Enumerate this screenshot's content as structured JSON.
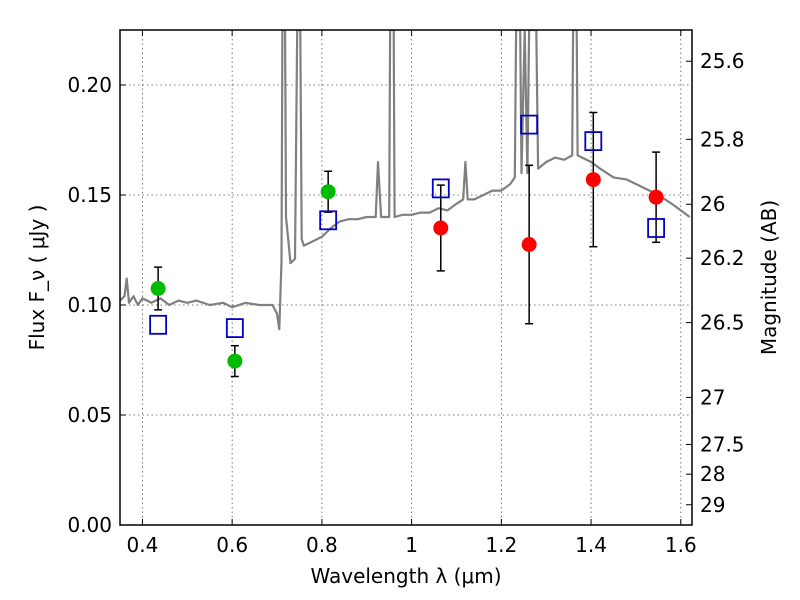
{
  "chart_data": {
    "type": "scatter",
    "xlabel": "Wavelength  λ (μm)",
    "ylabel": "Flux  F_ν  ( μJy )",
    "ylabel_right": "Magnitude (AB)",
    "xlim": [
      0.35,
      1.625
    ],
    "ylim": [
      0.0,
      0.225
    ],
    "xticks": [
      0.4,
      0.6,
      0.8,
      1.0,
      1.2,
      1.4,
      1.6
    ],
    "xtick_labels": [
      "0.4",
      "0.6",
      "0.8",
      "1",
      "1.2",
      "1.4",
      "1.6"
    ],
    "yticks": [
      0.0,
      0.05,
      0.1,
      0.15,
      0.2
    ],
    "ytick_labels": [
      "0.00",
      "0.05",
      "0.10",
      "0.15",
      "0.20"
    ],
    "right_ticks": [
      {
        "label": "25.6",
        "flux": 0.2108
      },
      {
        "label": "25.8",
        "flux": 0.1753
      },
      {
        "label": "26",
        "flux": 0.1458
      },
      {
        "label": "26.2",
        "flux": 0.1213
      },
      {
        "label": "26.5",
        "flux": 0.092
      },
      {
        "label": "27",
        "flux": 0.058
      },
      {
        "label": "27.5",
        "flux": 0.0366
      },
      {
        "label": "28",
        "flux": 0.0231
      },
      {
        "label": "29",
        "flux": 0.0092
      }
    ],
    "grid": true,
    "series": [
      {
        "marker": "circle",
        "color": "#00bb00",
        "points": [
          {
            "x": 0.435,
            "y": 0.1075,
            "err": 0.0097
          },
          {
            "x": 0.606,
            "y": 0.0745,
            "err": 0.007
          },
          {
            "x": 0.814,
            "y": 0.1515,
            "err": 0.0093
          }
        ]
      },
      {
        "marker": "circle",
        "color": "#ff0000",
        "points": [
          {
            "x": 1.065,
            "y": 0.135,
            "err": 0.0195
          },
          {
            "x": 1.262,
            "y": 0.1275,
            "err": 0.036
          },
          {
            "x": 1.405,
            "y": 0.157,
            "err": 0.0305
          },
          {
            "x": 1.545,
            "y": 0.149,
            "err": 0.0205
          }
        ]
      },
      {
        "marker": "open-square",
        "color": "#0000cc",
        "points": [
          {
            "x": 0.435,
            "y": 0.091
          },
          {
            "x": 0.606,
            "y": 0.0895
          },
          {
            "x": 0.814,
            "y": 0.1385
          },
          {
            "x": 1.065,
            "y": 0.153
          },
          {
            "x": 1.262,
            "y": 0.182
          },
          {
            "x": 1.405,
            "y": 0.1745
          },
          {
            "x": 1.545,
            "y": 0.135
          }
        ]
      },
      {
        "type": "line",
        "color": "#808080",
        "points": [
          [
            0.35,
            0.102
          ],
          [
            0.36,
            0.104
          ],
          [
            0.365,
            0.112
          ],
          [
            0.37,
            0.101
          ],
          [
            0.38,
            0.104
          ],
          [
            0.39,
            0.1
          ],
          [
            0.4,
            0.103
          ],
          [
            0.42,
            0.101
          ],
          [
            0.44,
            0.103
          ],
          [
            0.46,
            0.1
          ],
          [
            0.48,
            0.102
          ],
          [
            0.5,
            0.101
          ],
          [
            0.52,
            0.102
          ],
          [
            0.55,
            0.1
          ],
          [
            0.58,
            0.101
          ],
          [
            0.6,
            0.099
          ],
          [
            0.63,
            0.101
          ],
          [
            0.66,
            0.1
          ],
          [
            0.69,
            0.1
          ],
          [
            0.7,
            0.096
          ],
          [
            0.705,
            0.089
          ],
          [
            0.71,
            0.12
          ],
          [
            0.712,
            0.225
          ],
          [
            0.718,
            0.225
          ],
          [
            0.72,
            0.14
          ],
          [
            0.725,
            0.13
          ],
          [
            0.73,
            0.119
          ],
          [
            0.74,
            0.121
          ],
          [
            0.745,
            0.225
          ],
          [
            0.752,
            0.225
          ],
          [
            0.755,
            0.13
          ],
          [
            0.76,
            0.127
          ],
          [
            0.78,
            0.129
          ],
          [
            0.8,
            0.131
          ],
          [
            0.82,
            0.135
          ],
          [
            0.84,
            0.138
          ],
          [
            0.86,
            0.139
          ],
          [
            0.88,
            0.139
          ],
          [
            0.9,
            0.14
          ],
          [
            0.92,
            0.14
          ],
          [
            0.925,
            0.165
          ],
          [
            0.932,
            0.14
          ],
          [
            0.94,
            0.14
          ],
          [
            0.95,
            0.14
          ],
          [
            0.952,
            0.225
          ],
          [
            0.96,
            0.225
          ],
          [
            0.962,
            0.14
          ],
          [
            0.98,
            0.141
          ],
          [
            1.0,
            0.141
          ],
          [
            1.02,
            0.142
          ],
          [
            1.04,
            0.142
          ],
          [
            1.06,
            0.144
          ],
          [
            1.08,
            0.143
          ],
          [
            1.1,
            0.146
          ],
          [
            1.115,
            0.148
          ],
          [
            1.12,
            0.165
          ],
          [
            1.125,
            0.148
          ],
          [
            1.14,
            0.148
          ],
          [
            1.16,
            0.15
          ],
          [
            1.18,
            0.152
          ],
          [
            1.2,
            0.152
          ],
          [
            1.22,
            0.155
          ],
          [
            1.23,
            0.158
          ],
          [
            1.233,
            0.225
          ],
          [
            1.242,
            0.225
          ],
          [
            1.245,
            0.16
          ],
          [
            1.252,
            0.225
          ],
          [
            1.258,
            0.16
          ],
          [
            1.262,
            0.225
          ],
          [
            1.268,
            0.225
          ],
          [
            1.272,
            0.225
          ],
          [
            1.278,
            0.225
          ],
          [
            1.282,
            0.162
          ],
          [
            1.3,
            0.165
          ],
          [
            1.32,
            0.167
          ],
          [
            1.34,
            0.166
          ],
          [
            1.358,
            0.168
          ],
          [
            1.36,
            0.225
          ],
          [
            1.368,
            0.225
          ],
          [
            1.37,
            0.168
          ],
          [
            1.4,
            0.165
          ],
          [
            1.42,
            0.162
          ],
          [
            1.45,
            0.158
          ],
          [
            1.48,
            0.157
          ],
          [
            1.5,
            0.155
          ],
          [
            1.52,
            0.153
          ],
          [
            1.55,
            0.15
          ],
          [
            1.58,
            0.146
          ],
          [
            1.6,
            0.143
          ],
          [
            1.62,
            0.14
          ]
        ]
      }
    ]
  }
}
